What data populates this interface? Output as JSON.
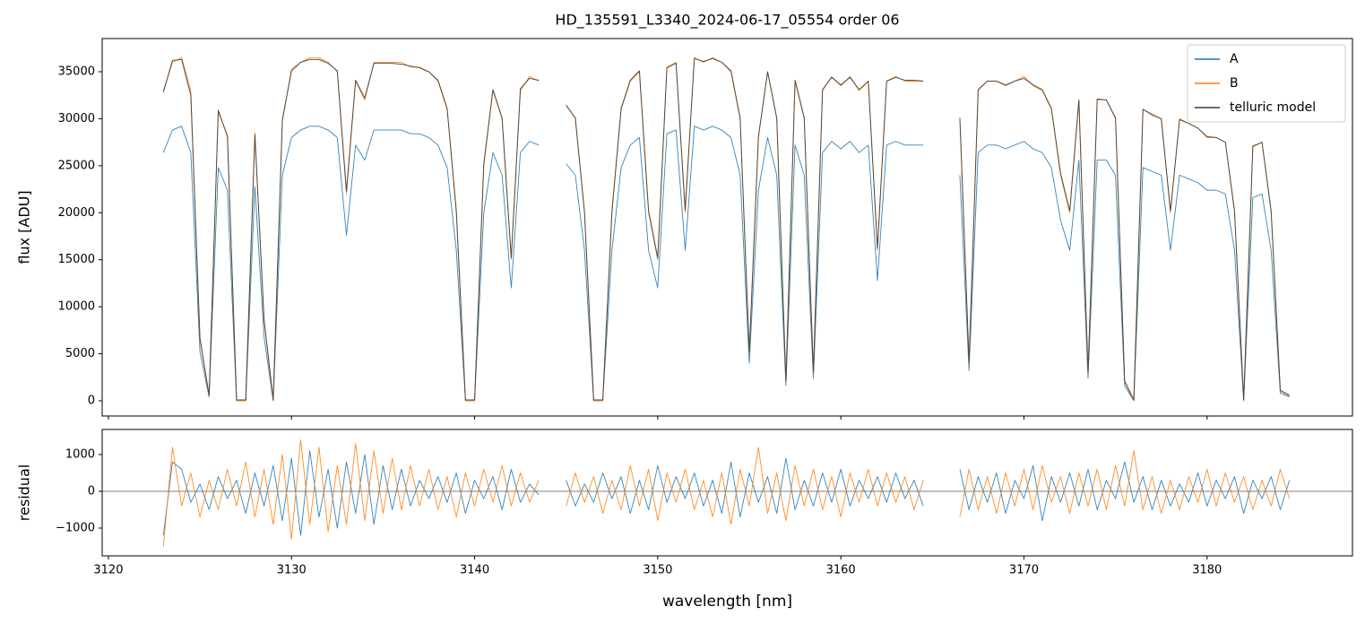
{
  "chart_data": [
    {
      "type": "line",
      "title": "HD_135591_L3340_2024-06-17_05554  order 06",
      "ylabel": "flux [ADU]",
      "xlim": [
        3119.66,
        3187.94
      ],
      "ylim": [
        -1620,
        38530
      ],
      "xticks": [
        3120,
        3130,
        3140,
        3150,
        3160,
        3170,
        3180
      ],
      "xtick_labels": false,
      "yticks": [
        0,
        5000,
        10000,
        15000,
        20000,
        25000,
        30000,
        35000
      ],
      "legend": "upper right",
      "x": [
        3123.0,
        3123.5,
        3124.0,
        3124.5,
        3125.0,
        3125.5,
        3126.0,
        3126.5,
        3127.0,
        3127.5,
        3128.0,
        3128.5,
        3129.0,
        3129.5,
        3130.0,
        3130.5,
        3131.0,
        3131.5,
        3132.0,
        3132.5,
        3133.0,
        3133.5,
        3134.0,
        3134.5,
        3135.0,
        3135.5,
        3136.0,
        3136.5,
        3137.0,
        3137.5,
        3138.0,
        3138.5,
        3139.0,
        3139.5,
        3140.0,
        3140.5,
        3141.0,
        3141.5,
        3142.0,
        3142.5,
        3143.0,
        3143.5,
        3144.0,
        3144.5,
        3145.0,
        3145.5,
        3146.0,
        3146.5,
        3147.0,
        3147.5,
        3148.0,
        3148.5,
        3149.0,
        3149.5,
        3150.0,
        3150.5,
        3151.0,
        3151.5,
        3152.0,
        3152.5,
        3153.0,
        3153.5,
        3154.0,
        3154.5,
        3155.0,
        3155.5,
        3156.0,
        3156.5,
        3157.0,
        3157.5,
        3158.0,
        3158.5,
        3159.0,
        3159.5,
        3160.0,
        3160.5,
        3161.0,
        3161.5,
        3162.0,
        3162.5,
        3163.0,
        3163.5,
        3164.0,
        3164.5,
        3165.0,
        3165.5,
        3166.0,
        3166.5,
        3167.0,
        3167.5,
        3168.0,
        3168.5,
        3169.0,
        3169.5,
        3170.0,
        3170.5,
        3171.0,
        3171.5,
        3172.0,
        3172.5,
        3173.0,
        3173.5,
        3174.0,
        3174.5,
        3175.0,
        3175.5,
        3176.0,
        3176.5,
        3177.0,
        3177.5,
        3178.0,
        3178.5,
        3179.0,
        3179.5,
        3180.0,
        3180.5,
        3181.0,
        3181.5,
        3182.0,
        3182.5,
        3183.0,
        3183.5,
        3184.0,
        3184.5
      ],
      "series": [
        {
          "name": "A",
          "color": "#1f77b4",
          "values": [
            26400,
            28800,
            29200,
            26400,
            5200,
            400,
            24800,
            22400,
            0,
            0,
            22800,
            6800,
            0,
            24000,
            28000,
            28800,
            29200,
            29200,
            28800,
            28000,
            17600,
            27200,
            25600,
            28800,
            28800,
            28800,
            28800,
            28400,
            28400,
            28000,
            27200,
            24800,
            16000,
            0,
            0,
            20000,
            26400,
            24000,
            12000,
            26400,
            27600,
            27200,
            null,
            null,
            25200,
            24000,
            16000,
            0,
            0,
            16000,
            24800,
            27200,
            28000,
            16000,
            12000,
            28400,
            28800,
            16000,
            29200,
            28800,
            29200,
            28800,
            28000,
            24000,
            4000,
            22400,
            28000,
            24000,
            1600,
            27200,
            24000,
            2400,
            26400,
            27600,
            26800,
            27600,
            26400,
            27200,
            12800,
            27200,
            27600,
            27200,
            27200,
            27200,
            null,
            null,
            null,
            24000,
            3200,
            26400,
            27200,
            27200,
            26800,
            27200,
            27600,
            26800,
            26400,
            24800,
            19200,
            16000,
            25600,
            2400,
            25600,
            25600,
            24000,
            1600,
            0,
            24800,
            24400,
            24000,
            16000,
            24000,
            23600,
            23200,
            22400,
            22400,
            22000,
            16000,
            0,
            21600,
            22000,
            16000,
            800,
            400
          ]
        },
        {
          "name": "B",
          "color": "#ff7f0e",
          "values": [
            33000,
            36000,
            36500,
            33000,
            6500,
            500,
            31000,
            28000,
            0,
            0,
            28500,
            8500,
            0,
            30000,
            35000,
            36000,
            36500,
            36500,
            36000,
            35000,
            22000,
            34000,
            32000,
            36000,
            36000,
            36000,
            36000,
            35500,
            35500,
            35000,
            34000,
            31000,
            20000,
            0,
            0,
            25000,
            33000,
            30000,
            15000,
            33000,
            34500,
            34000,
            null,
            null,
            31500,
            30000,
            20000,
            0,
            0,
            20000,
            31000,
            34000,
            35000,
            20000,
            15000,
            35500,
            36000,
            20000,
            36500,
            36000,
            36500,
            36000,
            35000,
            30000,
            5000,
            28000,
            35000,
            30000,
            2000,
            34000,
            30000,
            3000,
            33000,
            34500,
            33500,
            34500,
            33000,
            34000,
            16000,
            34000,
            34500,
            34000,
            34000,
            34000,
            null,
            null,
            null,
            30000,
            4000,
            33000,
            34000,
            34000,
            33500,
            34000,
            34500,
            33500,
            33000,
            31000,
            24000,
            20000,
            32000,
            3000,
            32000,
            32000,
            30000,
            2000,
            0,
            31000,
            30500,
            30000,
            20000,
            30000,
            29500,
            29000,
            28000,
            28000,
            27500,
            20000,
            0,
            27000,
            27500,
            20000,
            1000,
            500
          ]
        },
        {
          "name": "telluric model",
          "color": "#3a3a3a",
          "values": [
            32800,
            36200,
            36300,
            32500,
            6700,
            600,
            30800,
            28200,
            100,
            100,
            28300,
            8700,
            100,
            29800,
            35200,
            36000,
            36300,
            36300,
            35900,
            35100,
            22300,
            34100,
            32200,
            35900,
            35900,
            35900,
            35800,
            35600,
            35400,
            35000,
            34100,
            31100,
            20200,
            100,
            100,
            25200,
            33100,
            30100,
            15200,
            33200,
            34300,
            34100,
            null,
            null,
            31400,
            30100,
            20100,
            100,
            100,
            20200,
            31100,
            34100,
            35100,
            20200,
            15200,
            35400,
            35900,
            20300,
            36400,
            36100,
            36400,
            36000,
            35100,
            30100,
            5200,
            28100,
            35000,
            30100,
            2100,
            34100,
            30100,
            3100,
            33100,
            34400,
            33600,
            34400,
            33100,
            34000,
            16200,
            34000,
            34400,
            34100,
            34100,
            34000,
            null,
            null,
            null,
            30100,
            4100,
            33100,
            34000,
            34000,
            33600,
            34000,
            34300,
            33600,
            33100,
            31100,
            24200,
            20200,
            32000,
            3100,
            32100,
            32000,
            30100,
            2100,
            100,
            31000,
            30400,
            30000,
            20200,
            29900,
            29500,
            29000,
            28100,
            28000,
            27500,
            20200,
            100,
            27100,
            27500,
            20200,
            1100,
            600
          ]
        }
      ]
    },
    {
      "type": "line",
      "ylabel": "residual",
      "xlabel": "wavelength [nm]",
      "xlim": [
        3119.66,
        3187.94
      ],
      "ylim": [
        -1756,
        1683
      ],
      "xticks": [
        3120,
        3130,
        3140,
        3150,
        3160,
        3170,
        3180
      ],
      "xtick_labels": true,
      "yticks": [
        {
          "value": -1000,
          "label": "−1000"
        },
        0,
        1000
      ],
      "hline": 0,
      "x": [
        3123.0,
        3123.5,
        3124.0,
        3124.5,
        3125.0,
        3125.5,
        3126.0,
        3126.5,
        3127.0,
        3127.5,
        3128.0,
        3128.5,
        3129.0,
        3129.5,
        3130.0,
        3130.5,
        3131.0,
        3131.5,
        3132.0,
        3132.5,
        3133.0,
        3133.5,
        3134.0,
        3134.5,
        3135.0,
        3135.5,
        3136.0,
        3136.5,
        3137.0,
        3137.5,
        3138.0,
        3138.5,
        3139.0,
        3139.5,
        3140.0,
        3140.5,
        3141.0,
        3141.5,
        3142.0,
        3142.5,
        3143.0,
        3143.5,
        3144.0,
        3144.5,
        3145.0,
        3145.5,
        3146.0,
        3146.5,
        3147.0,
        3147.5,
        3148.0,
        3148.5,
        3149.0,
        3149.5,
        3150.0,
        3150.5,
        3151.0,
        3151.5,
        3152.0,
        3152.5,
        3153.0,
        3153.5,
        3154.0,
        3154.5,
        3155.0,
        3155.5,
        3156.0,
        3156.5,
        3157.0,
        3157.5,
        3158.0,
        3158.5,
        3159.0,
        3159.5,
        3160.0,
        3160.5,
        3161.0,
        3161.5,
        3162.0,
        3162.5,
        3163.0,
        3163.5,
        3164.0,
        3164.5,
        3165.0,
        3165.5,
        3166.0,
        3166.5,
        3167.0,
        3167.5,
        3168.0,
        3168.5,
        3169.0,
        3169.5,
        3170.0,
        3170.5,
        3171.0,
        3171.5,
        3172.0,
        3172.5,
        3173.0,
        3173.5,
        3174.0,
        3174.5,
        3175.0,
        3175.5,
        3176.0,
        3176.5,
        3177.0,
        3177.5,
        3178.0,
        3178.5,
        3179.0,
        3179.5,
        3180.0,
        3180.5,
        3181.0,
        3181.5,
        3182.0,
        3182.5,
        3183.0,
        3183.5,
        3184.0,
        3184.5
      ],
      "series": [
        {
          "name": "A",
          "color": "#1f77b4",
          "values": [
            -1200,
            800,
            600,
            -300,
            200,
            -500,
            400,
            -200,
            300,
            -600,
            500,
            -400,
            700,
            -800,
            900,
            -1200,
            1100,
            -700,
            600,
            -1000,
            800,
            -600,
            1000,
            -900,
            700,
            -500,
            600,
            -400,
            300,
            -200,
            400,
            -300,
            500,
            -600,
            300,
            -200,
            400,
            -500,
            600,
            -300,
            200,
            -100,
            null,
            null,
            300,
            -400,
            200,
            -300,
            500,
            -200,
            400,
            -600,
            300,
            -500,
            700,
            -300,
            400,
            -200,
            500,
            -400,
            300,
            -600,
            800,
            -700,
            500,
            -300,
            400,
            -600,
            900,
            -500,
            300,
            -400,
            500,
            -300,
            600,
            -400,
            300,
            -200,
            400,
            -300,
            500,
            -200,
            300,
            -400,
            null,
            null,
            null,
            600,
            -500,
            400,
            -300,
            500,
            -600,
            300,
            -200,
            700,
            -800,
            400,
            -300,
            500,
            -400,
            600,
            -500,
            300,
            -200,
            800,
            -300,
            400,
            -500,
            300,
            -400,
            200,
            -300,
            500,
            -400,
            300,
            -200,
            400,
            -600,
            300,
            -200,
            400,
            -500,
            300
          ]
        },
        {
          "name": "B",
          "color": "#ff7f0e",
          "values": [
            -1500,
            1200,
            -400,
            500,
            -700,
            300,
            -500,
            600,
            -400,
            800,
            -700,
            600,
            -900,
            1000,
            -1300,
            1400,
            -900,
            1200,
            -1100,
            700,
            -900,
            1300,
            -800,
            1100,
            -600,
            900,
            -500,
            700,
            -400,
            600,
            -500,
            400,
            -700,
            500,
            -400,
            600,
            -300,
            700,
            -400,
            500,
            -300,
            300,
            null,
            null,
            -400,
            500,
            -300,
            400,
            -600,
            300,
            -500,
            700,
            -400,
            600,
            -800,
            500,
            -300,
            600,
            -500,
            300,
            -700,
            500,
            -900,
            600,
            -400,
            1200,
            -600,
            500,
            -800,
            700,
            -400,
            600,
            -500,
            400,
            -700,
            500,
            -300,
            600,
            -400,
            500,
            -300,
            400,
            -500,
            300,
            null,
            null,
            null,
            -700,
            600,
            -500,
            400,
            -600,
            500,
            -400,
            600,
            -500,
            700,
            -300,
            400,
            -600,
            500,
            -400,
            600,
            -500,
            700,
            -400,
            1100,
            -500,
            400,
            -600,
            300,
            -500,
            400,
            -300,
            600,
            -400,
            500,
            -300,
            400,
            -500,
            300,
            -400,
            600,
            -200
          ]
        }
      ]
    }
  ]
}
